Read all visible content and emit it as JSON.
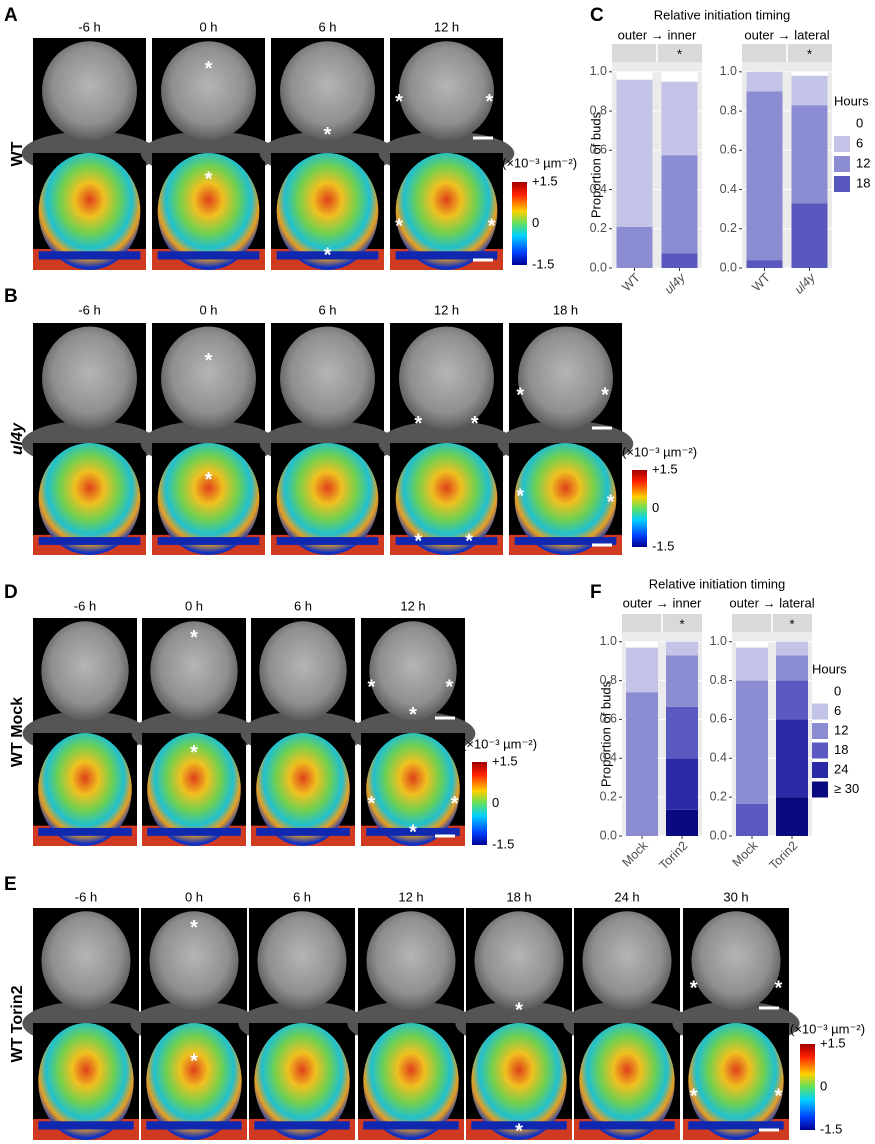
{
  "panels": [
    {
      "label": "A",
      "row_label": "WT",
      "times": [
        "-6 h",
        "0 h",
        "6 h",
        "12 h"
      ],
      "marker": "*",
      "colorbar": {
        "unit": "(×10⁻³ µm⁻²)",
        "ticks": [
          "+1.5",
          "0",
          "-1.5"
        ]
      }
    },
    {
      "label": "B",
      "row_label": "ul4y",
      "times": [
        "-6 h",
        "0 h",
        "6 h",
        "12 h",
        "18 h"
      ],
      "marker": "*",
      "colorbar": {
        "unit": "(×10⁻³ µm⁻²)",
        "ticks": [
          "+1.5",
          "0",
          "-1.5"
        ]
      }
    },
    {
      "label": "D",
      "row_label": "WT Mock",
      "times": [
        "-6 h",
        "0 h",
        "6 h",
        "12 h"
      ],
      "marker": "*",
      "colorbar": {
        "unit": "(×10⁻³ µm⁻²)",
        "ticks": [
          "+1.5",
          "0",
          "-1.5"
        ]
      }
    },
    {
      "label": "E",
      "row_label": "WT Torin2",
      "times": [
        "-6 h",
        "0 h",
        "6 h",
        "12 h",
        "18 h",
        "24 h",
        "30 h"
      ],
      "marker": "*",
      "colorbar": {
        "unit": "(×10⁻³ µm⁻²)",
        "ticks": [
          "+1.5",
          "0",
          "-1.5"
        ]
      }
    }
  ],
  "chart_data": [
    {
      "type": "stacked_bar",
      "panel_label": "C",
      "title": "Relative initiation timing",
      "ylabel": "Proportion of buds",
      "legend_title": "Hours",
      "categories": [
        "WT",
        "ul4y"
      ],
      "ylim": [
        0,
        1.05
      ],
      "yticks": [
        {
          "value": 0,
          "label": "0.0"
        },
        {
          "value": 0.2,
          "label": "0.2"
        },
        {
          "value": 0.4,
          "label": "0.4"
        },
        {
          "value": 0.6,
          "label": "0.6"
        },
        {
          "value": 0.8,
          "label": "0.8"
        },
        {
          "value": 1,
          "label": "1.0"
        }
      ],
      "series": [
        {
          "name": "0",
          "color": "#ffffff"
        },
        {
          "name": "6",
          "color": "#c3c3e8"
        },
        {
          "name": "12",
          "color": "#8c8cd3"
        },
        {
          "name": "18",
          "color": "#5757be"
        }
      ],
      "facets": [
        {
          "strip": "outer → inner",
          "annotation": "*",
          "values": [
            [
              0.04,
              0.05
            ],
            [
              0.75,
              0.375
            ],
            [
              0.21,
              0.5
            ],
            [
              0,
              0.075
            ]
          ]
        },
        {
          "strip": "outer → lateral",
          "annotation": "*",
          "values": [
            [
              0,
              0.02
            ],
            [
              0.1,
              0.15
            ],
            [
              0.86,
              0.5
            ],
            [
              0.04,
              0.33
            ]
          ]
        }
      ]
    },
    {
      "type": "stacked_bar",
      "panel_label": "F",
      "title": "Relative initiation timing",
      "ylabel": "Proportion of buds",
      "legend_title": "Hours",
      "categories": [
        "Mock",
        "Torin2"
      ],
      "ylim": [
        0,
        1.05
      ],
      "yticks": [
        {
          "value": 0,
          "label": "0.0"
        },
        {
          "value": 0.2,
          "label": "0.2"
        },
        {
          "value": 0.4,
          "label": "0.4"
        },
        {
          "value": 0.6,
          "label": "0.6"
        },
        {
          "value": 0.8,
          "label": "0.8"
        },
        {
          "value": 1,
          "label": "1.0"
        }
      ],
      "series": [
        {
          "name": "0",
          "color": "#ffffff"
        },
        {
          "name": "6",
          "color": "#c3c3e8"
        },
        {
          "name": "12",
          "color": "#8c8cd3"
        },
        {
          "name": "18",
          "color": "#5a5ac2"
        },
        {
          "name": "24",
          "color": "#2b2ba8"
        },
        {
          "name": "≥ 30",
          "color": "#0a0a80"
        }
      ],
      "facets": [
        {
          "strip": "outer → inner",
          "annotation": "*",
          "values": [
            [
              0.03,
              0
            ],
            [
              0.23,
              0.07
            ],
            [
              0.74,
              0.265
            ],
            [
              0,
              0.265
            ],
            [
              0,
              0.265
            ],
            [
              0,
              0.135
            ]
          ]
        },
        {
          "strip": "outer → lateral",
          "annotation": "*",
          "values": [
            [
              0.03,
              0
            ],
            [
              0.17,
              0.07
            ],
            [
              0.635,
              0.13
            ],
            [
              0.165,
              0.2
            ],
            [
              0,
              0.4
            ],
            [
              0,
              0.2
            ]
          ]
        }
      ]
    }
  ]
}
